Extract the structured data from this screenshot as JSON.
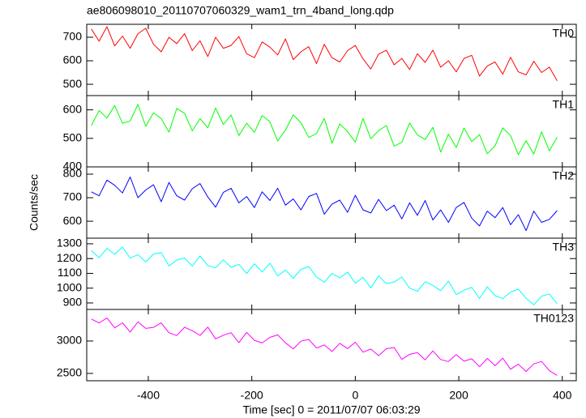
{
  "chart_data": {
    "type": "line",
    "title": "ae806098010_20110707060329_wam1_trn_4band_long.qdp",
    "xlabel": "Time [sec] 0 = 2011/07/07 06:03:29",
    "ylabel": "Counts/sec",
    "xlim": [
      -519,
      427
    ],
    "xticks": [
      -400,
      -200,
      0,
      200,
      400
    ],
    "x": [
      -510,
      -495,
      -480,
      -465,
      -450,
      -435,
      -420,
      -405,
      -390,
      -375,
      -360,
      -345,
      -330,
      -315,
      -300,
      -285,
      -270,
      -255,
      -240,
      -225,
      -210,
      -195,
      -180,
      -165,
      -150,
      -135,
      -120,
      -105,
      -90,
      -75,
      -60,
      -45,
      -30,
      -15,
      0,
      15,
      30,
      45,
      60,
      75,
      90,
      105,
      120,
      135,
      150,
      165,
      180,
      195,
      210,
      225,
      240,
      255,
      270,
      285,
      300,
      315,
      330,
      345,
      360,
      375,
      390
    ],
    "series": [
      {
        "name": "TH0",
        "color": "#ff0000",
        "ylim": [
          452,
          755
        ],
        "yticks": [
          500,
          600,
          700
        ],
        "values": [
          735,
          683,
          745,
          663,
          705,
          653,
          715,
          738,
          670,
          638,
          700,
          673,
          715,
          643,
          685,
          618,
          700,
          653,
          665,
          703,
          630,
          613,
          680,
          658,
          625,
          693,
          605,
          638,
          660,
          588,
          670,
          613,
          595,
          643,
          665,
          608,
          565,
          628,
          645,
          583,
          610,
          563,
          630,
          593,
          645,
          573,
          600,
          553,
          610,
          623,
          535,
          578,
          595,
          543,
          615,
          553,
          540,
          598,
          550,
          573,
          515
        ]
      },
      {
        "name": "TH1",
        "color": "#00ff00",
        "ylim": [
          400,
          650
        ],
        "yticks": [
          400,
          500,
          600
        ],
        "values": [
          545,
          598,
          571,
          615,
          553,
          561,
          619,
          542,
          590,
          569,
          522,
          605,
          588,
          526,
          569,
          537,
          606,
          549,
          582,
          510,
          553,
          521,
          580,
          558,
          491,
          529,
          582,
          555,
          503,
          517,
          570,
          483,
          551,
          524,
          487,
          570,
          499,
          527,
          545,
          473,
          486,
          554,
          512,
          496,
          539,
          452,
          515,
          468,
          536,
          489,
          513,
          446,
          474,
          537,
          510,
          443,
          492,
          445,
          523,
          456,
          504
        ]
      },
      {
        "name": "TH2",
        "color": "#0000ff",
        "ylim": [
          528,
          831
        ],
        "yticks": [
          600,
          700,
          800
        ],
        "values": [
          725,
          708,
          775,
          753,
          720,
          788,
          700,
          733,
          755,
          683,
          765,
          708,
          690,
          738,
          760,
          703,
          660,
          723,
          740,
          678,
          705,
          658,
          725,
          688,
          740,
          668,
          695,
          648,
          705,
          718,
          630,
          673,
          690,
          638,
          710,
          648,
          635,
          693,
          645,
          668,
          610,
          678,
          625,
          688,
          605,
          648,
          595,
          658,
          680,
          613,
          580,
          643,
          615,
          658,
          585,
          628,
          560,
          643,
          595,
          608,
          645
        ]
      },
      {
        "name": "TH3",
        "color": "#00ffff",
        "ylim": [
          856,
          1338
        ],
        "yticks": [
          900,
          1000,
          1100,
          1200,
          1300
        ],
        "values": [
          1255,
          1205,
          1269,
          1229,
          1278,
          1203,
          1227,
          1177,
          1231,
          1241,
          1150,
          1190,
          1204,
          1149,
          1218,
          1153,
          1137,
          1192,
          1141,
          1161,
          1100,
          1165,
          1109,
          1169,
          1083,
          1123,
          1067,
          1127,
          1146,
          1076,
          1040,
          1100,
          1069,
          1109,
          1033,
          1073,
          1002,
          1082,
          1031,
          1041,
          1075,
          1000,
          979,
          1044,
          1018,
          983,
          1047,
          957,
          986,
          1006,
          930,
          1010,
          949,
          929,
          973,
          993,
          932,
          887,
          946,
          961,
          895
        ]
      },
      {
        "name": "TH0123",
        "color": "#ff00ff",
        "ylim": [
          2387,
          3487
        ],
        "yticks": [
          2500,
          3000
        ],
        "values": [
          3340,
          3278,
          3355,
          3203,
          3281,
          3138,
          3296,
          3194,
          3211,
          3279,
          3127,
          3084,
          3212,
          3160,
          3087,
          3215,
          3033,
          3090,
          3128,
          2976,
          3133,
          3011,
          2969,
          3056,
          3094,
          2972,
          2879,
          2997,
          3025,
          2892,
          2940,
          2838,
          2965,
          2883,
          2981,
          2828,
          2876,
          2774,
          2881,
          2899,
          2717,
          2794,
          2822,
          2710,
          2847,
          2715,
          2683,
          2790,
          2688,
          2726,
          2603,
          2731,
          2619,
          2736,
          2564,
          2642,
          2529,
          2647,
          2685,
          2542,
          2470
        ]
      }
    ]
  }
}
